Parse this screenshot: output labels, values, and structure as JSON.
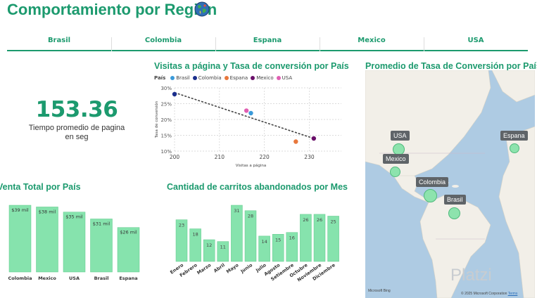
{
  "header": {
    "title": "Comportamiento por Región"
  },
  "tabs": [
    {
      "label": "Brasil"
    },
    {
      "label": "Colombia"
    },
    {
      "label": "Espana"
    },
    {
      "label": "Mexico"
    },
    {
      "label": "USA"
    }
  ],
  "kpi": {
    "value": "153.36",
    "label": "Tiempo promedio de pagina en seg"
  },
  "colors": {
    "accent": "#1c9a6e",
    "bar": "#86e3ad",
    "bar_border": "#5fc98a",
    "map_water": "#aecbe3",
    "map_land": "#f2efe8"
  },
  "map": {
    "title": "Promedio de Tasa de Conversión por País",
    "labels": {
      "usa": "USA",
      "mexico": "Mexico",
      "colombia": "Colombia",
      "brasil": "Brasil",
      "espana": "Espana"
    },
    "attribution_left": "Microsoft Bing",
    "attribution_right": "© 2025 Microsoft Corporation",
    "terms": "Terms"
  },
  "watermark": "Platzi",
  "charts": {
    "scatter": {
      "title": "Visitas a página y Tasa de conversión por País",
      "legend_title": "País",
      "xlabel": "Visitas a página",
      "ylabel": "Tasa de conversión"
    }
  },
  "chart_data": [
    {
      "type": "scatter",
      "title": "Visitas a página y Tasa de conversión por País",
      "xlabel": "Visitas a página",
      "ylabel": "Tasa de conversión",
      "xlim": [
        200,
        234
      ],
      "ylim": [
        0.1,
        0.3
      ],
      "xticks": [
        200,
        210,
        220,
        230
      ],
      "yticks_labels": [
        "10%",
        "15%",
        "20%",
        "25%",
        "30%"
      ],
      "yticks": [
        0.1,
        0.15,
        0.2,
        0.25,
        0.3
      ],
      "grid": true,
      "trendline": {
        "x": [
          200,
          231
        ],
        "y": [
          0.285,
          0.14
        ]
      },
      "series": [
        {
          "name": "Brasil",
          "color": "#3a9ad9",
          "x": [
            217
          ],
          "y": [
            0.22
          ]
        },
        {
          "name": "Colombia",
          "color": "#1a2e8c",
          "x": [
            200
          ],
          "y": [
            0.28
          ]
        },
        {
          "name": "Espana",
          "color": "#e8783c",
          "x": [
            227
          ],
          "y": [
            0.13
          ]
        },
        {
          "name": "Mexico",
          "color": "#6a0f6a",
          "x": [
            231
          ],
          "y": [
            0.14
          ]
        },
        {
          "name": "USA",
          "color": "#e05fb2",
          "x": [
            216
          ],
          "y": [
            0.228
          ]
        }
      ]
    },
    {
      "type": "bar",
      "title": "Venta Total por País",
      "categories": [
        "Colombia",
        "Mexico",
        "USA",
        "Brasil",
        "Espana"
      ],
      "values": [
        39,
        38,
        35,
        31,
        26
      ],
      "data_labels": [
        "$39 mil",
        "$38 mil",
        "$35 mil",
        "$31 mil",
        "$26 mil"
      ],
      "ylim": [
        0,
        39
      ]
    },
    {
      "type": "bar",
      "title": "Cantidad de carritos abandonados por Mes",
      "categories": [
        "Enero",
        "Febrero",
        "Marzo",
        "Abril",
        "Mayo",
        "Junio",
        "Julio",
        "Agosto",
        "Setiembre",
        "Octubre",
        "Noviembre",
        "Diciembre"
      ],
      "values": [
        23,
        18,
        12,
        11,
        31,
        28,
        14,
        15,
        16,
        26,
        26,
        25
      ],
      "ylim": [
        0,
        31
      ]
    }
  ]
}
